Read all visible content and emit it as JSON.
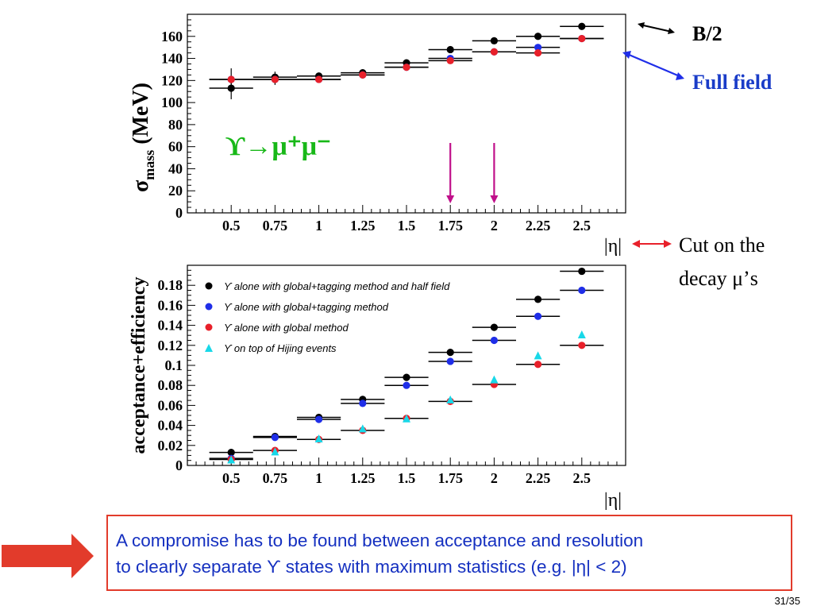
{
  "annotations": {
    "b_half": "B/2",
    "full_field": "Full field",
    "cut_line1": "Cut on the",
    "cut_line2": "decay μ’s",
    "reaction": "ϒ→μ⁺μ⁻"
  },
  "colors": {
    "black": "#000000",
    "blue": "#1f2ee8",
    "red": "#e8202a",
    "cyan": "#18d8e8",
    "magenta": "#c0108a",
    "green": "#18b818",
    "callout_red": "#e23b2b",
    "text_blue": "#1530c0"
  },
  "chart_data": [
    {
      "type": "scatter",
      "title": "",
      "xlabel": "|η|",
      "ylabel": "σmass (MeV)",
      "ylabel_main": "σ",
      "ylabel_sub": "mass",
      "ylabel_unit": " (MeV)",
      "xlim": [
        0.25,
        2.75
      ],
      "ylim": [
        0,
        180
      ],
      "x_ticks": [
        "0.5",
        "0.75",
        "1",
        "1.25",
        "1.5",
        "1.75",
        "2",
        "2.25",
        "2.5"
      ],
      "y_ticks": [
        "0",
        "20",
        "40",
        "60",
        "80",
        "100",
        "120",
        "140",
        "160"
      ],
      "grid": false,
      "cut_markers_x": [
        1.75,
        2.0
      ],
      "series": [
        {
          "name": "B/2",
          "color": "black",
          "x": [
            0.5,
            0.75,
            1.0,
            1.25,
            1.5,
            1.75,
            2.0,
            2.25,
            2.5
          ],
          "y": [
            113,
            123,
            124,
            127,
            136,
            148,
            156,
            160,
            169
          ],
          "err": [
            10,
            5,
            2,
            2,
            2,
            2,
            2,
            2,
            2
          ]
        },
        {
          "name": "Full field",
          "color": "blue",
          "x": [
            0.5,
            0.75,
            1.0,
            1.25,
            1.5,
            1.75,
            2.0,
            2.25,
            2.5
          ],
          "y": [
            121,
            121,
            121,
            125,
            132,
            140,
            146,
            150,
            158
          ],
          "err": [
            10,
            5,
            2,
            2,
            2,
            2,
            2,
            2,
            2
          ]
        },
        {
          "name": "",
          "color": "red",
          "x": [
            0.5,
            0.75,
            1.0,
            1.25,
            1.5,
            1.75,
            2.0,
            2.25,
            2.5
          ],
          "y": [
            121,
            121,
            121,
            125,
            132,
            138,
            146,
            145,
            158
          ],
          "err": [
            0,
            0,
            0,
            0,
            0,
            0,
            0,
            0,
            0
          ]
        }
      ]
    },
    {
      "type": "scatter",
      "title": "",
      "xlabel": "|η|",
      "ylabel": "acceptance+efficiency",
      "xlim": [
        0.25,
        2.75
      ],
      "ylim": [
        0,
        0.2
      ],
      "x_ticks": [
        "0.5",
        "0.75",
        "1",
        "1.25",
        "1.5",
        "1.75",
        "2",
        "2.25",
        "2.5"
      ],
      "y_ticks": [
        "0",
        "0.02",
        "0.04",
        "0.06",
        "0.08",
        "0.1",
        "0.12",
        "0.14",
        "0.16",
        "0.18"
      ],
      "grid": false,
      "legend_position": "top-left",
      "series": [
        {
          "name": "ϒ alone with global+tagging method and half field",
          "color": "black",
          "marker": "circle",
          "x": [
            0.5,
            0.75,
            1.0,
            1.25,
            1.5,
            1.75,
            2.0,
            2.25,
            2.5
          ],
          "y": [
            0.013,
            0.029,
            0.048,
            0.066,
            0.088,
            0.113,
            0.138,
            0.166,
            0.194
          ]
        },
        {
          "name": "ϒ alone with global+tagging method",
          "color": "blue",
          "marker": "circle",
          "x": [
            0.5,
            0.75,
            1.0,
            1.25,
            1.5,
            1.75,
            2.0,
            2.25,
            2.5
          ],
          "y": [
            0.007,
            0.028,
            0.046,
            0.062,
            0.08,
            0.104,
            0.125,
            0.149,
            0.175
          ]
        },
        {
          "name": "ϒ alone with global method",
          "color": "red",
          "marker": "circle",
          "x": [
            0.5,
            0.75,
            1.0,
            1.25,
            1.5,
            1.75,
            2.0,
            2.25,
            2.5
          ],
          "y": [
            0.006,
            0.015,
            0.026,
            0.035,
            0.047,
            0.064,
            0.081,
            0.101,
            0.12
          ]
        },
        {
          "name": "ϒ on top of Hijing events",
          "color": "cyan",
          "marker": "triangle",
          "x": [
            0.5,
            0.75,
            1.0,
            1.25,
            1.5,
            1.75,
            2.0,
            2.25,
            2.5
          ],
          "y": [
            0.006,
            0.014,
            0.027,
            0.037,
            0.047,
            0.066,
            0.086,
            0.11,
            0.131
          ]
        }
      ]
    }
  ],
  "footer": {
    "compromise_line1": "A compromise has to be found between acceptance and resolution",
    "compromise_line2": "to clearly separate ϒ states with maximum statistics     (e.g. |η| < 2)",
    "page": "31/35"
  }
}
